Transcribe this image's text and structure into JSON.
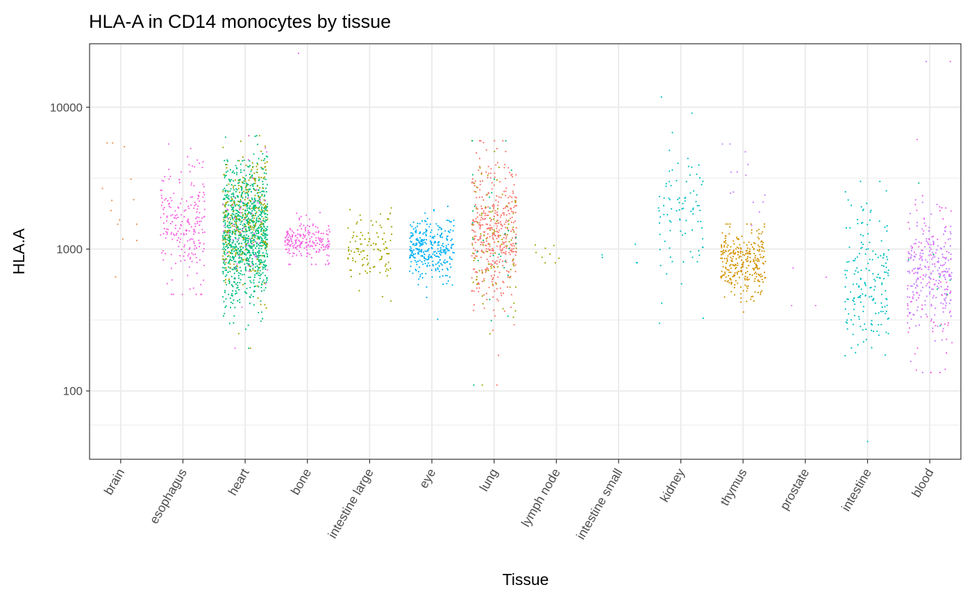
{
  "chart_data": {
    "type": "scatter",
    "title": "HLA-A in CD14 monocytes by tissue",
    "xlabel": "Tissue",
    "ylabel": "HLA.A",
    "y_scale": "log10",
    "ylim": [
      33,
      28000
    ],
    "y_ticks": [
      100,
      1000,
      10000
    ],
    "y_tick_labels": [
      "100",
      "1000",
      "10000"
    ],
    "grid": true,
    "legend": "none",
    "jitter": true,
    "categories": [
      "brain",
      "esophagus",
      "heart",
      "bone",
      "intestine large",
      "eye",
      "lung",
      "lymph node",
      "intestine small",
      "kidney",
      "thymus",
      "prostate",
      "intestine",
      "blood"
    ],
    "groups": [
      {
        "category": "brain",
        "color": "#e78f4e",
        "n": 14,
        "median": 2100,
        "spread": 0.3,
        "min": 600,
        "max": 5600
      },
      {
        "category": "esophagus",
        "color": "#f564e3",
        "n": 220,
        "median": 1550,
        "spread": 0.2,
        "min": 480,
        "max": 5500
      },
      {
        "category": "heart",
        "color": "#00bf7d",
        "n": 1000,
        "median": 1300,
        "spread": 0.24,
        "min": 200,
        "max": 6300
      },
      {
        "category": "heart",
        "color": "#a3a500",
        "n": 260,
        "median": 1700,
        "spread": 0.22,
        "min": 200,
        "max": 6300
      },
      {
        "category": "heart",
        "color": "#e76bf3",
        "n": 60,
        "median": 1300,
        "spread": 0.22,
        "min": 200,
        "max": 6300
      },
      {
        "category": "bone",
        "color": "#f564e3",
        "n": 210,
        "median": 1120,
        "spread": 0.07,
        "min": 780,
        "max": 24000
      },
      {
        "category": "intestine large",
        "color": "#a3a500",
        "n": 110,
        "median": 1060,
        "spread": 0.12,
        "min": 430,
        "max": 1950
      },
      {
        "category": "eye",
        "color": "#00b0f6",
        "n": 320,
        "median": 980,
        "spread": 0.1,
        "min": 320,
        "max": 2000
      },
      {
        "category": "lung",
        "color": "#f8766d",
        "n": 420,
        "median": 1350,
        "spread": 0.26,
        "min": 110,
        "max": 5800
      },
      {
        "category": "lung",
        "color": "#a3a500",
        "n": 90,
        "median": 1100,
        "spread": 0.26,
        "min": 110,
        "max": 5800
      },
      {
        "category": "lung",
        "color": "#00bf7d",
        "n": 30,
        "median": 1100,
        "spread": 0.26,
        "min": 110,
        "max": 5800
      },
      {
        "category": "lymph node",
        "color": "#a3a500",
        "n": 9,
        "median": 980,
        "spread": 0.06,
        "min": 800,
        "max": 1200
      },
      {
        "category": "intestine small",
        "color": "#00bfc4",
        "n": 5,
        "median": 920,
        "spread": 0.08,
        "min": 800,
        "max": 1350
      },
      {
        "category": "kidney",
        "color": "#00bfc4",
        "n": 90,
        "median": 1800,
        "spread": 0.25,
        "min": 300,
        "max": 11800
      },
      {
        "category": "thymus",
        "color": "#d39200",
        "n": 300,
        "median": 800,
        "spread": 0.12,
        "min": 360,
        "max": 1500
      },
      {
        "category": "thymus",
        "color": "#c77cff",
        "n": 14,
        "median": 2600,
        "spread": 0.25,
        "min": 360,
        "max": 5500
      },
      {
        "category": "prostate",
        "color": "#e76bf3",
        "n": 4,
        "median": 600,
        "spread": 0.25,
        "min": 400,
        "max": 900
      },
      {
        "category": "intestine",
        "color": "#00bfc4",
        "n": 180,
        "median": 640,
        "spread": 0.28,
        "min": 44,
        "max": 3000
      },
      {
        "category": "blood",
        "color": "#c77cff",
        "n": 240,
        "median": 680,
        "spread": 0.2,
        "min": 135,
        "max": 21000
      },
      {
        "category": "blood",
        "color": "#f564e3",
        "n": 90,
        "median": 800,
        "spread": 0.32,
        "min": 135,
        "max": 21000
      },
      {
        "category": "blood",
        "color": "#00bf7d",
        "n": 8,
        "median": 700,
        "spread": 0.25,
        "min": 135,
        "max": 21000
      }
    ]
  }
}
